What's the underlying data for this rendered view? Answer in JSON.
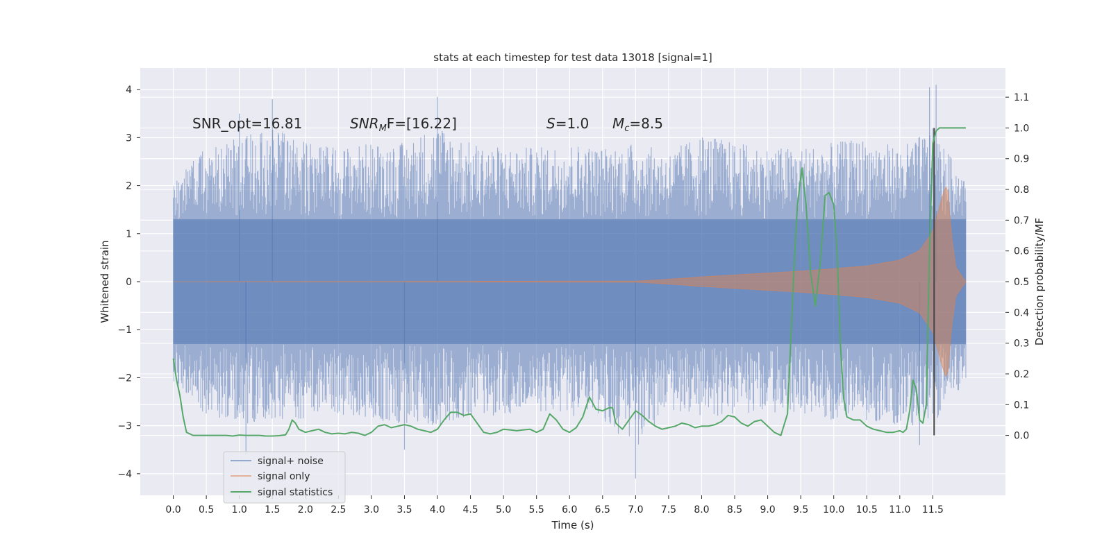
{
  "chart_data": {
    "type": "line",
    "title": "stats at each timestep for test data 13018 [signal=1]",
    "xlabel": "Time (s)",
    "ylabel": "Whitened strain",
    "y2label": "Detection probability/MF",
    "xlim": [
      -0.5,
      12.6
    ],
    "ylim": [
      -4.45,
      4.45
    ],
    "y2lim": [
      -0.195,
      1.195
    ],
    "x_ticks": [
      "0.0",
      "0.5",
      "1.0",
      "1.5",
      "2.0",
      "2.5",
      "3.0",
      "3.5",
      "4.0",
      "4.5",
      "5.0",
      "5.5",
      "6.0",
      "6.5",
      "7.0",
      "7.5",
      "8.0",
      "8.5",
      "9.0",
      "9.5",
      "10.0",
      "10.5",
      "11.0",
      "11.5"
    ],
    "y_ticks": [
      "4",
      "3",
      "2",
      "1",
      "0",
      "−1",
      "−2",
      "−3",
      "−4"
    ],
    "y2_ticks": [
      "1.1",
      "1.0",
      "0.9",
      "0.8",
      "0.7",
      "0.6",
      "0.5",
      "0.4",
      "0.3",
      "0.2",
      "0.1",
      "0.0"
    ],
    "grid": true,
    "legend_position": "lower-left",
    "annotations": {
      "snr_opt": "SNR_opt=16.81",
      "snr_mf_base": "SNR",
      "snr_mf_sub": "M",
      "snr_mf_rest": "F=[16.22]",
      "s_symbol": "S",
      "s_value": "=1.0",
      "mc_symbol": "M",
      "mc_sub": "c",
      "mc_value": "=8.5"
    },
    "series": [
      {
        "name": "signal+ noise",
        "color": "#4c72b0",
        "t_range": [
          0.0,
          12.0
        ],
        "envelope_upper": [
          [
            0.0,
            2.1
          ],
          [
            0.5,
            2.8
          ],
          [
            1.0,
            3.0
          ],
          [
            1.5,
            3.2
          ],
          [
            2.0,
            2.9
          ],
          [
            2.5,
            2.8
          ],
          [
            3.0,
            2.9
          ],
          [
            3.5,
            2.9
          ],
          [
            4.0,
            3.3
          ],
          [
            4.5,
            2.9
          ],
          [
            5.0,
            2.8
          ],
          [
            5.5,
            2.8
          ],
          [
            6.0,
            2.9
          ],
          [
            6.5,
            2.8
          ],
          [
            7.0,
            2.9
          ],
          [
            7.5,
            2.7
          ],
          [
            8.0,
            3.1
          ],
          [
            8.5,
            2.9
          ],
          [
            9.0,
            2.8
          ],
          [
            9.5,
            2.8
          ],
          [
            10.0,
            2.9
          ],
          [
            10.5,
            3.0
          ],
          [
            11.0,
            2.8
          ],
          [
            11.5,
            3.2
          ],
          [
            12.0,
            2.1
          ]
        ],
        "envelope_lower": [
          [
            0.0,
            -2.1
          ],
          [
            0.5,
            -2.8
          ],
          [
            1.0,
            -3.0
          ],
          [
            1.5,
            -2.9
          ],
          [
            2.0,
            -2.9
          ],
          [
            2.5,
            -2.8
          ],
          [
            3.0,
            -2.9
          ],
          [
            3.5,
            -3.0
          ],
          [
            4.0,
            -3.0
          ],
          [
            4.5,
            -2.8
          ],
          [
            5.0,
            -2.8
          ],
          [
            5.5,
            -2.7
          ],
          [
            6.0,
            -2.8
          ],
          [
            6.5,
            -2.9
          ],
          [
            7.0,
            -3.5
          ],
          [
            7.5,
            -2.7
          ],
          [
            8.0,
            -2.8
          ],
          [
            8.5,
            -2.8
          ],
          [
            9.0,
            -2.7
          ],
          [
            9.5,
            -2.8
          ],
          [
            10.0,
            -2.9
          ],
          [
            10.5,
            -2.9
          ],
          [
            11.0,
            -3.0
          ],
          [
            11.5,
            -3.0
          ],
          [
            12.0,
            -2.1
          ]
        ],
        "dense_band": 1.3,
        "spikes": [
          [
            1.0,
            3.5
          ],
          [
            1.5,
            3.8
          ],
          [
            4.0,
            3.85
          ],
          [
            7.0,
            -4.1
          ],
          [
            11.45,
            4.05
          ],
          [
            11.55,
            4.1
          ],
          [
            11.3,
            -3.4
          ],
          [
            3.5,
            -3.5
          ],
          [
            1.1,
            -3.6
          ]
        ]
      },
      {
        "name": "signal only",
        "color": "#dd8452",
        "t_range": [
          0.0,
          12.0
        ],
        "envelope": [
          [
            0.0,
            0.0
          ],
          [
            7.0,
            0.01
          ],
          [
            7.5,
            0.05
          ],
          [
            8.0,
            0.1
          ],
          [
            8.5,
            0.14
          ],
          [
            9.0,
            0.18
          ],
          [
            9.5,
            0.22
          ],
          [
            10.0,
            0.27
          ],
          [
            10.5,
            0.33
          ],
          [
            11.0,
            0.45
          ],
          [
            11.3,
            0.65
          ],
          [
            11.5,
            1.05
          ],
          [
            11.65,
            1.8
          ],
          [
            11.72,
            2.05
          ],
          [
            11.78,
            1.0
          ],
          [
            11.85,
            0.3
          ],
          [
            12.0,
            0.0
          ]
        ]
      },
      {
        "name": "signal statistics",
        "color": "#55a868",
        "axis": "right",
        "points": [
          [
            0.0,
            0.25
          ],
          [
            0.05,
            0.18
          ],
          [
            0.1,
            0.13
          ],
          [
            0.15,
            0.06
          ],
          [
            0.2,
            0.01
          ],
          [
            0.3,
            0.0
          ],
          [
            0.4,
            0.0
          ],
          [
            0.5,
            0.0
          ],
          [
            0.6,
            0.0
          ],
          [
            0.7,
            0.0
          ],
          [
            0.8,
            0.0
          ],
          [
            0.9,
            -0.002
          ],
          [
            1.0,
            0.001
          ],
          [
            1.1,
            0.0
          ],
          [
            1.2,
            0.0
          ],
          [
            1.3,
            0.0
          ],
          [
            1.4,
            -0.002
          ],
          [
            1.5,
            -0.002
          ],
          [
            1.6,
            -0.001
          ],
          [
            1.7,
            0.002
          ],
          [
            1.75,
            0.02
          ],
          [
            1.8,
            0.05
          ],
          [
            1.85,
            0.04
          ],
          [
            1.9,
            0.02
          ],
          [
            2.0,
            0.01
          ],
          [
            2.1,
            0.015
          ],
          [
            2.2,
            0.02
          ],
          [
            2.3,
            0.01
          ],
          [
            2.4,
            0.005
          ],
          [
            2.5,
            0.007
          ],
          [
            2.6,
            0.005
          ],
          [
            2.7,
            0.01
          ],
          [
            2.8,
            0.007
          ],
          [
            2.9,
            0.0
          ],
          [
            3.0,
            0.01
          ],
          [
            3.1,
            0.03
          ],
          [
            3.2,
            0.035
          ],
          [
            3.3,
            0.025
          ],
          [
            3.4,
            0.03
          ],
          [
            3.5,
            0.035
          ],
          [
            3.6,
            0.03
          ],
          [
            3.7,
            0.02
          ],
          [
            3.8,
            0.015
          ],
          [
            3.9,
            0.01
          ],
          [
            4.0,
            0.02
          ],
          [
            4.1,
            0.05
          ],
          [
            4.2,
            0.075
          ],
          [
            4.3,
            0.075
          ],
          [
            4.4,
            0.065
          ],
          [
            4.5,
            0.07
          ],
          [
            4.6,
            0.04
          ],
          [
            4.7,
            0.01
          ],
          [
            4.8,
            0.005
          ],
          [
            4.9,
            0.01
          ],
          [
            5.0,
            0.02
          ],
          [
            5.1,
            0.018
          ],
          [
            5.2,
            0.015
          ],
          [
            5.3,
            0.018
          ],
          [
            5.4,
            0.02
          ],
          [
            5.5,
            0.01
          ],
          [
            5.6,
            0.02
          ],
          [
            5.7,
            0.07
          ],
          [
            5.8,
            0.05
          ],
          [
            5.9,
            0.02
          ],
          [
            6.0,
            0.01
          ],
          [
            6.1,
            0.025
          ],
          [
            6.2,
            0.06
          ],
          [
            6.3,
            0.125
          ],
          [
            6.4,
            0.085
          ],
          [
            6.5,
            0.08
          ],
          [
            6.6,
            0.09
          ],
          [
            6.65,
            0.09
          ],
          [
            6.7,
            0.04
          ],
          [
            6.8,
            0.02
          ],
          [
            6.9,
            0.05
          ],
          [
            7.0,
            0.08
          ],
          [
            7.1,
            0.065
          ],
          [
            7.2,
            0.045
          ],
          [
            7.3,
            0.03
          ],
          [
            7.4,
            0.02
          ],
          [
            7.5,
            0.025
          ],
          [
            7.6,
            0.03
          ],
          [
            7.7,
            0.04
          ],
          [
            7.8,
            0.035
          ],
          [
            7.9,
            0.025
          ],
          [
            8.0,
            0.03
          ],
          [
            8.1,
            0.03
          ],
          [
            8.2,
            0.035
          ],
          [
            8.3,
            0.045
          ],
          [
            8.4,
            0.065
          ],
          [
            8.5,
            0.06
          ],
          [
            8.6,
            0.04
          ],
          [
            8.7,
            0.03
          ],
          [
            8.8,
            0.045
          ],
          [
            8.9,
            0.05
          ],
          [
            9.0,
            0.03
          ],
          [
            9.1,
            0.01
          ],
          [
            9.2,
            0.0
          ],
          [
            9.3,
            0.07
          ],
          [
            9.4,
            0.55
          ],
          [
            9.45,
            0.75
          ],
          [
            9.52,
            0.87
          ],
          [
            9.58,
            0.75
          ],
          [
            9.65,
            0.53
          ],
          [
            9.72,
            0.42
          ],
          [
            9.8,
            0.57
          ],
          [
            9.87,
            0.78
          ],
          [
            9.93,
            0.79
          ],
          [
            10.0,
            0.75
          ],
          [
            10.05,
            0.6
          ],
          [
            10.1,
            0.3
          ],
          [
            10.15,
            0.12
          ],
          [
            10.2,
            0.06
          ],
          [
            10.3,
            0.05
          ],
          [
            10.4,
            0.05
          ],
          [
            10.5,
            0.03
          ],
          [
            10.6,
            0.02
          ],
          [
            10.7,
            0.015
          ],
          [
            10.8,
            0.01
          ],
          [
            10.9,
            0.01
          ],
          [
            11.0,
            0.015
          ],
          [
            11.05,
            0.01
          ],
          [
            11.1,
            0.02
          ],
          [
            11.15,
            0.08
          ],
          [
            11.2,
            0.18
          ],
          [
            11.25,
            0.15
          ],
          [
            11.3,
            0.05
          ],
          [
            11.35,
            0.04
          ],
          [
            11.4,
            0.1
          ],
          [
            11.45,
            0.6
          ],
          [
            11.5,
            0.95
          ],
          [
            11.55,
            0.99
          ],
          [
            11.6,
            1.0
          ],
          [
            11.7,
            1.0
          ],
          [
            11.8,
            1.0
          ],
          [
            11.9,
            1.0
          ],
          [
            12.0,
            1.0
          ]
        ]
      }
    ],
    "marker_line": {
      "x": 11.52,
      "y_top": 3.2,
      "y_bottom": -3.2,
      "color": "#444444"
    }
  }
}
